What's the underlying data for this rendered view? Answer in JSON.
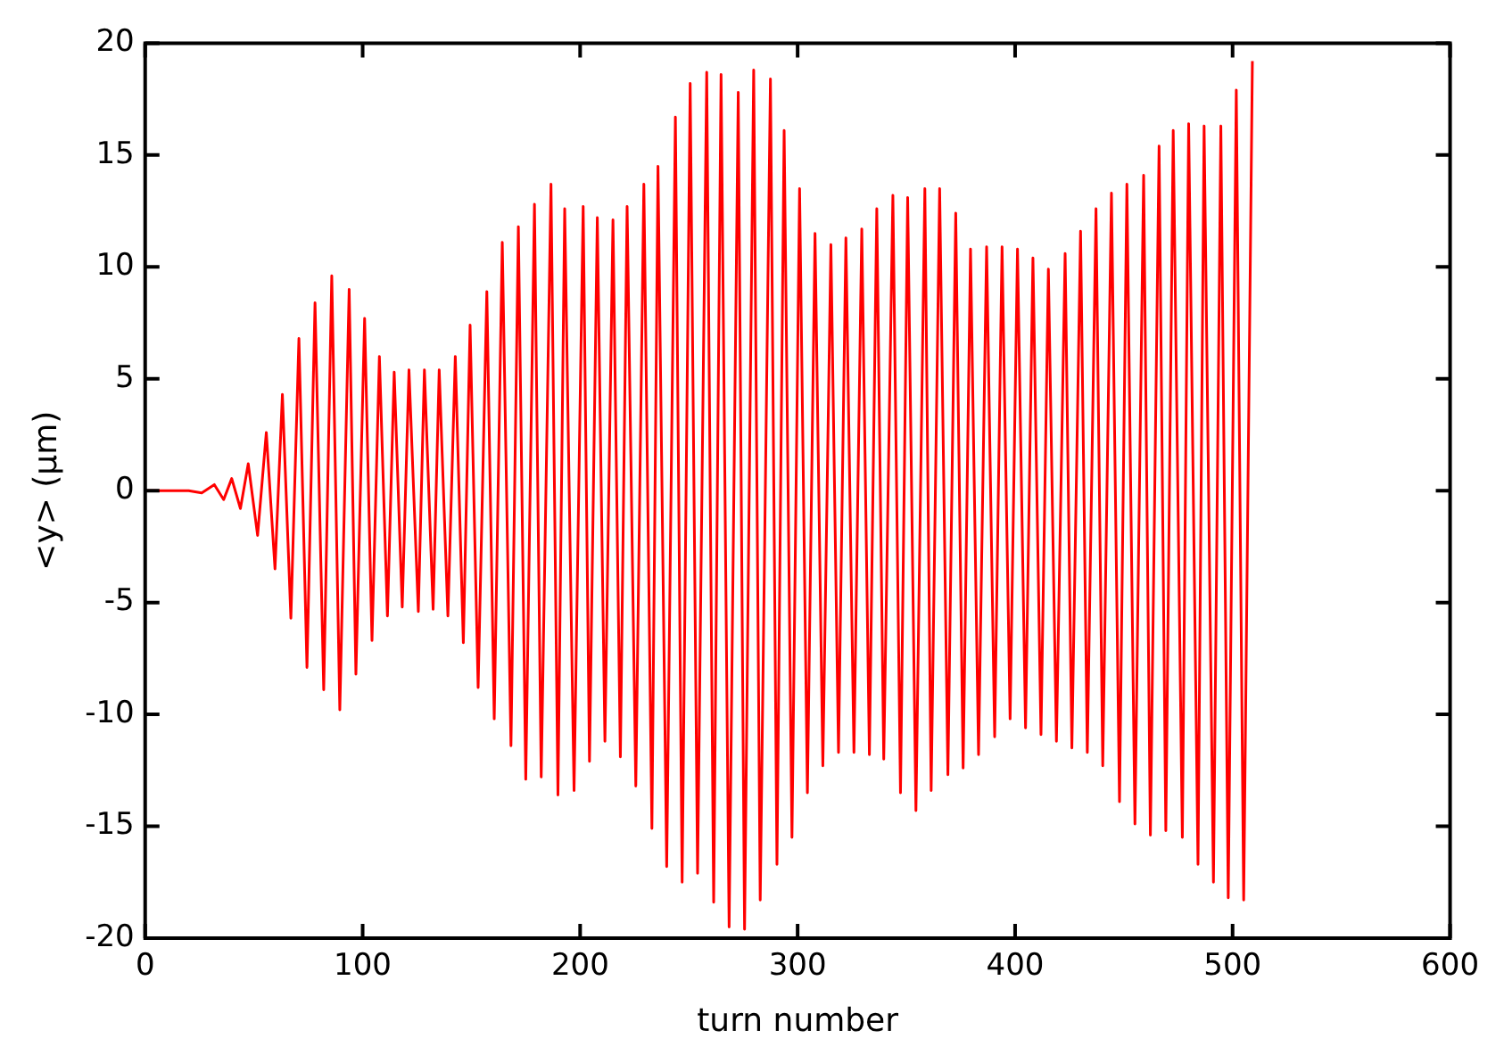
{
  "chart_data": {
    "type": "line",
    "xlabel": "turn number",
    "ylabel": "<y> (μm)",
    "xlim": [
      0,
      600
    ],
    "ylim": [
      -20,
      20
    ],
    "xticks": [
      0,
      100,
      200,
      300,
      400,
      500,
      600
    ],
    "yticks": [
      -20,
      -15,
      -10,
      -5,
      0,
      5,
      10,
      15,
      20
    ],
    "grid": false,
    "legend": false,
    "marker": "none",
    "line_style": "solid",
    "series": [
      {
        "color": "#ff0000",
        "x": [
          0,
          10,
          20,
          26,
          31.8,
          36.1,
          39.8,
          43.8,
          47.4,
          51.7,
          55.7,
          59.7,
          63.1,
          67.0,
          70.7,
          74.4,
          78.1,
          82.1,
          85.8,
          89.5,
          93.8,
          96.9,
          100.9,
          104.3,
          107.7,
          111.4,
          114.5,
          118.2,
          121.3,
          125.6,
          128.4,
          132.4,
          135.2,
          139.2,
          142.6,
          146.3,
          149.4,
          153.1,
          157.1,
          160.5,
          164.2,
          168.2,
          171.6,
          175.0,
          179.0,
          182.1,
          186.6,
          189.8,
          192.9,
          197.2,
          201.4,
          204.3,
          207.9,
          211.4,
          215.1,
          218.5,
          221.6,
          225.6,
          229.3,
          233.0,
          235.8,
          239.8,
          243.8,
          246.9,
          250.6,
          254.0,
          258.2,
          261.4,
          264.8,
          268.5,
          272.7,
          275.6,
          279.8,
          282.8,
          287.5,
          290.5,
          293.8,
          297.4,
          300.9,
          304.5,
          308.0,
          311.6,
          315.3,
          318.8,
          322.2,
          325.9,
          329.5,
          333.0,
          336.4,
          339.6,
          343.8,
          347.3,
          350.6,
          354.4,
          358.5,
          361.4,
          365.3,
          369.1,
          372.7,
          376.1,
          379.5,
          383.2,
          386.9,
          390.6,
          394.0,
          397.7,
          401.1,
          404.8,
          408.2,
          411.9,
          415.3,
          419.0,
          423.0,
          426.1,
          430.1,
          433.2,
          437.2,
          440.3,
          444.3,
          448.0,
          451.4,
          455.1,
          459.1,
          462.2,
          466.2,
          469.3,
          472.7,
          476.9,
          479.8,
          484.1,
          486.9,
          491.2,
          494.6,
          498.0,
          501.7,
          505.1,
          509.1
        ],
        "values": [
          0,
          0,
          0,
          -0.1,
          0.27,
          -0.4,
          0.54,
          -0.8,
          1.2,
          -2.0,
          2.6,
          -3.5,
          4.3,
          -5.7,
          6.8,
          -7.9,
          8.4,
          -8.9,
          9.6,
          -9.8,
          9.0,
          -8.2,
          7.7,
          -6.7,
          6.0,
          -5.6,
          5.3,
          -5.2,
          5.4,
          -5.4,
          5.4,
          -5.3,
          5.4,
          -5.6,
          6.0,
          -6.8,
          7.4,
          -8.8,
          8.9,
          -10.2,
          11.1,
          -11.4,
          11.8,
          -12.9,
          12.8,
          -12.8,
          13.7,
          -13.6,
          12.6,
          -13.4,
          12.7,
          -12.1,
          12.2,
          -11.2,
          12.1,
          -11.9,
          12.7,
          -13.2,
          13.7,
          -15.1,
          14.5,
          -16.8,
          16.7,
          -17.5,
          18.2,
          -17.1,
          18.7,
          -18.4,
          18.6,
          -19.5,
          17.8,
          -19.6,
          18.8,
          -18.3,
          18.4,
          -16.7,
          16.1,
          -15.5,
          13.5,
          -13.5,
          11.5,
          -12.3,
          11.0,
          -11.7,
          11.3,
          -11.7,
          11.7,
          -11.8,
          12.6,
          -12.0,
          13.2,
          -13.5,
          13.1,
          -14.3,
          13.5,
          -13.4,
          13.5,
          -12.7,
          12.4,
          -12.4,
          10.8,
          -11.8,
          10.9,
          -11.0,
          10.9,
          -10.2,
          10.8,
          -10.6,
          10.4,
          -10.9,
          9.9,
          -11.2,
          10.6,
          -11.5,
          11.6,
          -11.7,
          12.6,
          -12.3,
          13.3,
          -13.9,
          13.7,
          -14.9,
          14.1,
          -15.4,
          15.4,
          -15.2,
          16.1,
          -15.5,
          16.4,
          -16.7,
          16.3,
          -17.5,
          16.3,
          -18.2,
          17.9,
          -18.3,
          19.2
        ]
      }
    ]
  }
}
